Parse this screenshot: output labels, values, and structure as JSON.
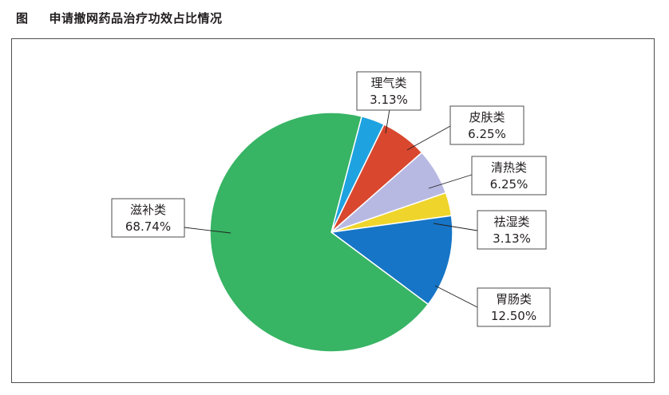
{
  "figure": {
    "tag": "图",
    "title": "申请撤网药品治疗功效占比情况"
  },
  "chart_data": {
    "type": "pie",
    "title": "申请撤网药品治疗功效占比情况",
    "unit": "%",
    "slices": [
      {
        "name": "理气类",
        "value": 3.13,
        "label": "3.13%",
        "color": "#1fa3e0"
      },
      {
        "name": "皮肤类",
        "value": 6.25,
        "label": "6.25%",
        "color": "#d9472e"
      },
      {
        "name": "清热类",
        "value": 6.25,
        "label": "6.25%",
        "color": "#b8b9e2"
      },
      {
        "name": "祛湿类",
        "value": 3.13,
        "label": "3.13%",
        "color": "#efd52b"
      },
      {
        "name": "胃肠类",
        "value": 12.5,
        "label": "12.50%",
        "color": "#1675c6"
      },
      {
        "name": "滋补类",
        "value": 68.74,
        "label": "68.74%",
        "color": "#37b464"
      }
    ]
  }
}
